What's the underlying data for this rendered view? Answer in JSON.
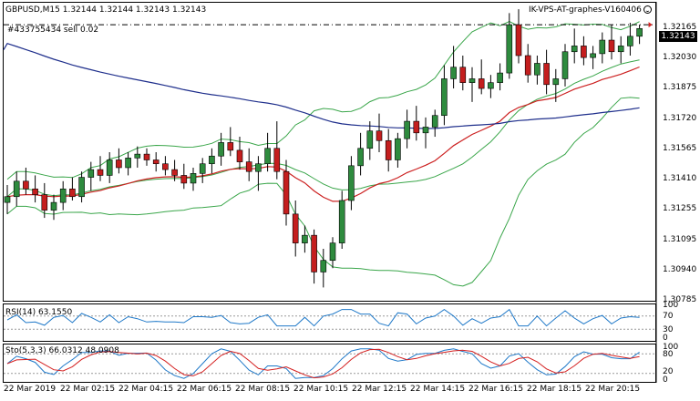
{
  "header": {
    "symbol_info": "GBPUSD,M15  1.32144 1.32144 1.32143 1.32143",
    "expert": "IK-VPS-AT-graphes-V160406",
    "order_label": "#433755434 sell 0.02"
  },
  "colors": {
    "bull": "#2e8b3e",
    "bear": "#c41e1e",
    "bands": "#3aa64a",
    "ma_fast": "#cc2020",
    "ma_slow": "#1f2f8c",
    "rsi": "#1e78c8",
    "stoch_main": "#1e78c8",
    "stoch_signal": "#d42020"
  },
  "price_axis": {
    "current_price": "1.32143",
    "ticks": [
      "1.32165",
      "1.32030",
      "1.31875",
      "1.31720",
      "1.31565",
      "1.31410",
      "1.31255",
      "1.31095",
      "1.30940",
      "1.30785"
    ]
  },
  "rsi": {
    "label": "RSI(14) 63.1550",
    "ticks": [
      "100",
      "70",
      "30",
      "0"
    ]
  },
  "stoch": {
    "label": "Sto(5,3,3) 66.0312 48.0908",
    "ticks": [
      "100",
      "80",
      "20",
      "0"
    ]
  },
  "time_axis": {
    "labels": [
      "22 Mar 2019",
      "22 Mar 02:15",
      "22 Mar 04:15",
      "22 Mar 06:15",
      "22 Mar 08:15",
      "22 Mar 10:15",
      "22 Mar 12:15",
      "22 Mar 14:15",
      "22 Mar 16:15",
      "22 Mar 18:15",
      "22 Mar 20:15"
    ]
  },
  "chart_data": {
    "type": "candlestick",
    "symbol": "GBPUSD",
    "timeframe": "M15",
    "ylim": [
      1.3075,
      1.3225
    ],
    "order_price": 1.3216,
    "candles": [
      [
        1.3124,
        1.3133,
        1.3118,
        1.3127
      ],
      [
        1.3127,
        1.314,
        1.3122,
        1.3135
      ],
      [
        1.3135,
        1.3142,
        1.3128,
        1.3131
      ],
      [
        1.3131,
        1.3138,
        1.3124,
        1.3128
      ],
      [
        1.3128,
        1.3134,
        1.3116,
        1.312
      ],
      [
        1.312,
        1.3128,
        1.3115,
        1.3124
      ],
      [
        1.3124,
        1.3135,
        1.312,
        1.3131
      ],
      [
        1.3131,
        1.3137,
        1.3125,
        1.3127
      ],
      [
        1.3127,
        1.314,
        1.3124,
        1.3137
      ],
      [
        1.3137,
        1.3145,
        1.313,
        1.3141
      ],
      [
        1.3141,
        1.3148,
        1.3135,
        1.3138
      ],
      [
        1.3138,
        1.315,
        1.3134,
        1.3146
      ],
      [
        1.3146,
        1.3152,
        1.3139,
        1.3142
      ],
      [
        1.3142,
        1.315,
        1.3138,
        1.3147
      ],
      [
        1.3147,
        1.3153,
        1.3142,
        1.3149
      ],
      [
        1.3149,
        1.3152,
        1.3143,
        1.3146
      ],
      [
        1.3146,
        1.315,
        1.314,
        1.3144
      ],
      [
        1.3144,
        1.3148,
        1.3138,
        1.3141
      ],
      [
        1.3141,
        1.3146,
        1.3135,
        1.3138
      ],
      [
        1.3138,
        1.3144,
        1.3131,
        1.3134
      ],
      [
        1.3134,
        1.3142,
        1.313,
        1.3139
      ],
      [
        1.3139,
        1.3147,
        1.3134,
        1.3144
      ],
      [
        1.3144,
        1.3152,
        1.3139,
        1.3148
      ],
      [
        1.3148,
        1.316,
        1.3143,
        1.3155
      ],
      [
        1.3155,
        1.3163,
        1.3148,
        1.3151
      ],
      [
        1.3151,
        1.3158,
        1.3141,
        1.3145
      ],
      [
        1.3145,
        1.3152,
        1.3135,
        1.314
      ],
      [
        1.314,
        1.3148,
        1.313,
        1.3144
      ],
      [
        1.3144,
        1.316,
        1.314,
        1.3152
      ],
      [
        1.3152,
        1.3166,
        1.3136,
        1.314
      ],
      [
        1.314,
        1.3146,
        1.3112,
        1.3118
      ],
      [
        1.3118,
        1.3125,
        1.3096,
        1.3103
      ],
      [
        1.3103,
        1.3112,
        1.3098,
        1.3107
      ],
      [
        1.3107,
        1.311,
        1.3082,
        1.3088
      ],
      [
        1.3088,
        1.31,
        1.308,
        1.3094
      ],
      [
        1.3094,
        1.3106,
        1.309,
        1.3103
      ],
      [
        1.3103,
        1.313,
        1.31,
        1.3125
      ],
      [
        1.3125,
        1.3148,
        1.312,
        1.3143
      ],
      [
        1.3143,
        1.316,
        1.3138,
        1.3152
      ],
      [
        1.3152,
        1.3166,
        1.3146,
        1.3161
      ],
      [
        1.3161,
        1.317,
        1.315,
        1.3156
      ],
      [
        1.3156,
        1.3162,
        1.314,
        1.3146
      ],
      [
        1.3146,
        1.316,
        1.3142,
        1.3157
      ],
      [
        1.3157,
        1.3172,
        1.3152,
        1.3166
      ],
      [
        1.3166,
        1.3174,
        1.3156,
        1.316
      ],
      [
        1.316,
        1.3168,
        1.3152,
        1.3163
      ],
      [
        1.3163,
        1.3172,
        1.3158,
        1.3169
      ],
      [
        1.3169,
        1.3195,
        1.3164,
        1.3188
      ],
      [
        1.3188,
        1.3205,
        1.3183,
        1.3194
      ],
      [
        1.3194,
        1.32,
        1.3182,
        1.3186
      ],
      [
        1.3186,
        1.3194,
        1.3176,
        1.3188
      ],
      [
        1.3188,
        1.3198,
        1.318,
        1.3183
      ],
      [
        1.3183,
        1.319,
        1.3178,
        1.3186
      ],
      [
        1.3186,
        1.3196,
        1.3182,
        1.3191
      ],
      [
        1.3191,
        1.3222,
        1.3188,
        1.3216
      ],
      [
        1.3216,
        1.3224,
        1.3196,
        1.32
      ],
      [
        1.32,
        1.3206,
        1.3186,
        1.319
      ],
      [
        1.319,
        1.32,
        1.3185,
        1.3196
      ],
      [
        1.3196,
        1.3203,
        1.318,
        1.3185
      ],
      [
        1.3185,
        1.3193,
        1.3176,
        1.3188
      ],
      [
        1.3188,
        1.3206,
        1.3184,
        1.3202
      ],
      [
        1.3202,
        1.3214,
        1.3196,
        1.3205
      ],
      [
        1.3205,
        1.321,
        1.3195,
        1.3199
      ],
      [
        1.3199,
        1.3205,
        1.3193,
        1.3201
      ],
      [
        1.3201,
        1.3212,
        1.3196,
        1.3208
      ],
      [
        1.3208,
        1.3216,
        1.3198,
        1.3202
      ],
      [
        1.3202,
        1.321,
        1.3196,
        1.3205
      ],
      [
        1.3205,
        1.3217,
        1.32,
        1.321
      ],
      [
        1.321,
        1.3216,
        1.3206,
        1.3214
      ]
    ],
    "indicators": [
      "Bollinger Bands",
      "Moving Average (fast)",
      "Moving Average (slow)",
      "RSI(14)",
      "Stochastic(5,3,3)"
    ]
  }
}
